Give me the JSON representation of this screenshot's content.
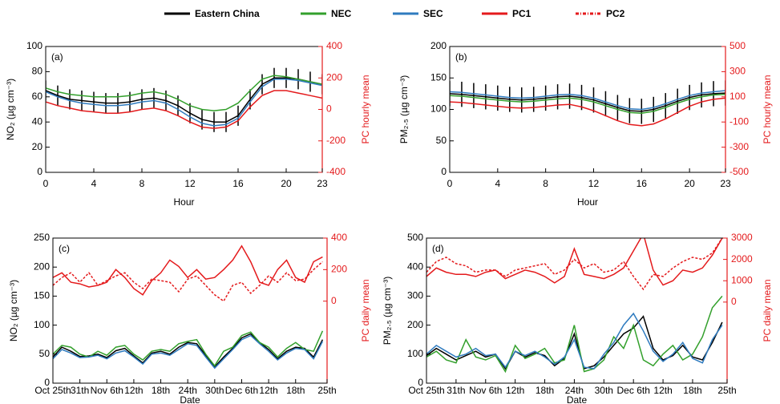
{
  "chart_data": [
    {
      "type": "line",
      "label": "(a)",
      "xlabel": "Hour",
      "ylabel": "NO₂ (µg cm⁻³)",
      "y2label": "PC hourly mean",
      "x": [
        0,
        1,
        2,
        3,
        4,
        5,
        6,
        7,
        8,
        9,
        10,
        11,
        12,
        13,
        14,
        15,
        16,
        17,
        18,
        19,
        20,
        21,
        22,
        23
      ],
      "xlim": [
        0,
        23
      ],
      "xticks": [
        0,
        4,
        8,
        12,
        16,
        20,
        23
      ],
      "ylim": [
        0,
        100
      ],
      "yticks": [
        0,
        20,
        40,
        60,
        80,
        100
      ],
      "y2lim": [
        -400,
        400
      ],
      "y2ticks": [
        -400,
        -200,
        0,
        200,
        400
      ],
      "series": [
        {
          "name": "Eastern China",
          "color": "#000000",
          "values": [
            65,
            61,
            58,
            57,
            56,
            55,
            55,
            56,
            58,
            59,
            57,
            53,
            47,
            42,
            40,
            40,
            45,
            58,
            70,
            75,
            75,
            74,
            72,
            70
          ],
          "errors": [
            8,
            8,
            8,
            8,
            8,
            8,
            8,
            8,
            8,
            8,
            8,
            8,
            8,
            8,
            8,
            8,
            8,
            8,
            8,
            8,
            8,
            8,
            8,
            8
          ]
        },
        {
          "name": "NEC",
          "color": "#33a02c",
          "values": [
            67,
            64,
            62,
            61,
            60,
            60,
            60,
            61,
            63,
            64,
            62,
            58,
            53,
            50,
            49,
            50,
            55,
            65,
            74,
            77,
            76,
            74,
            72,
            70
          ]
        },
        {
          "name": "SEC",
          "color": "#2f7bbf",
          "values": [
            64,
            60,
            57,
            55,
            54,
            53,
            53,
            54,
            56,
            57,
            55,
            50,
            44,
            39,
            37,
            38,
            43,
            56,
            68,
            74,
            74,
            73,
            71,
            69
          ]
        },
        {
          "name": "PC1",
          "color": "#e41a1c",
          "axis": "y2",
          "values": [
            48,
            24,
            8,
            -8,
            -16,
            -24,
            -24,
            -16,
            0,
            8,
            -8,
            -40,
            -80,
            -112,
            -120,
            -112,
            -72,
            16,
            88,
            120,
            120,
            104,
            88,
            72
          ]
        }
      ]
    },
    {
      "type": "line",
      "label": "(b)",
      "xlabel": "Hour",
      "ylabel": "PM₂.₅ (µg cm⁻³)",
      "y2label": "PC hourly mean",
      "x": [
        0,
        1,
        2,
        3,
        4,
        5,
        6,
        7,
        8,
        9,
        10,
        11,
        12,
        13,
        14,
        15,
        16,
        17,
        18,
        19,
        20,
        21,
        22,
        23
      ],
      "xlim": [
        0,
        23
      ],
      "xticks": [
        0,
        4,
        8,
        12,
        16,
        20,
        23
      ],
      "ylim": [
        0,
        200
      ],
      "yticks": [
        0,
        50,
        100,
        150,
        200
      ],
      "y2lim": [
        -500,
        500
      ],
      "y2ticks": [
        -500,
        -300,
        -100,
        100,
        300,
        500
      ],
      "series": [
        {
          "name": "Eastern China",
          "color": "#000000",
          "values": [
            125,
            124,
            122,
            120,
            118,
            116,
            115,
            116,
            118,
            120,
            121,
            119,
            115,
            109,
            103,
            98,
            97,
            100,
            106,
            113,
            119,
            123,
            125,
            126
          ],
          "errors": [
            20,
            20,
            20,
            20,
            20,
            20,
            20,
            20,
            20,
            20,
            20,
            20,
            20,
            20,
            20,
            20,
            20,
            20,
            20,
            20,
            20,
            20,
            20,
            20
          ]
        },
        {
          "name": "NEC",
          "color": "#33a02c",
          "values": [
            122,
            121,
            119,
            117,
            115,
            113,
            112,
            113,
            115,
            117,
            118,
            116,
            112,
            106,
            100,
            95,
            94,
            97,
            103,
            110,
            116,
            120,
            123,
            124
          ]
        },
        {
          "name": "SEC",
          "color": "#2f7bbf",
          "values": [
            128,
            127,
            125,
            123,
            121,
            119,
            118,
            119,
            121,
            123,
            124,
            122,
            118,
            112,
            106,
            101,
            100,
            103,
            109,
            116,
            122,
            126,
            128,
            130
          ]
        },
        {
          "name": "PC1",
          "color": "#e41a1c",
          "axis": "y2",
          "values": [
            60,
            55,
            45,
            35,
            25,
            15,
            10,
            15,
            25,
            35,
            40,
            20,
            -10,
            -50,
            -90,
            -120,
            -130,
            -115,
            -75,
            -25,
            25,
            60,
            80,
            90
          ]
        }
      ]
    },
    {
      "type": "line",
      "label": "(c)",
      "xlabel": "Date",
      "ylabel": "NO₂ (µg cm⁻³)",
      "y2label": "PC daily mean",
      "x": [
        0,
        2,
        4,
        6,
        8,
        10,
        12,
        14,
        16,
        18,
        20,
        22,
        24,
        26,
        28,
        30,
        32,
        34,
        36,
        38,
        40,
        42,
        44,
        46,
        48,
        50,
        52,
        54,
        56,
        58,
        60
      ],
      "xlim": [
        0,
        61
      ],
      "xticks": [
        {
          "value": 0,
          "label": "Oct 25th"
        },
        {
          "value": 6,
          "label": "31th"
        },
        {
          "value": 12,
          "label": "Nov 6th"
        },
        {
          "value": 18,
          "label": "12th"
        },
        {
          "value": 24,
          "label": "18th"
        },
        {
          "value": 30,
          "label": "24th"
        },
        {
          "value": 36,
          "label": "30th"
        },
        {
          "value": 42,
          "label": "Dec 6th"
        },
        {
          "value": 48,
          "label": "12th"
        },
        {
          "value": 54,
          "label": "18th"
        },
        {
          "value": 61,
          "label": "25th"
        }
      ],
      "ylim": [
        0,
        250
      ],
      "yticks": [
        0,
        50,
        100,
        150,
        200,
        250
      ],
      "y2lim": [
        -520,
        400
      ],
      "y2ticks": [
        0,
        200,
        400
      ],
      "series": [
        {
          "name": "Eastern China",
          "color": "#000000",
          "values": [
            45,
            62,
            55,
            46,
            47,
            50,
            44,
            56,
            60,
            47,
            35,
            52,
            55,
            50,
            62,
            70,
            68,
            48,
            28,
            45,
            60,
            78,
            85,
            70,
            58,
            42,
            55,
            62,
            60,
            45,
            75
          ]
        },
        {
          "name": "NEC",
          "color": "#33a02c",
          "values": [
            50,
            65,
            62,
            50,
            45,
            55,
            48,
            62,
            65,
            50,
            40,
            55,
            58,
            55,
            68,
            72,
            75,
            50,
            30,
            55,
            62,
            82,
            88,
            70,
            62,
            45,
            60,
            70,
            58,
            55,
            90
          ]
        },
        {
          "name": "SEC",
          "color": "#2f7bbf",
          "values": [
            42,
            58,
            52,
            44,
            45,
            48,
            42,
            52,
            56,
            45,
            33,
            50,
            52,
            48,
            58,
            68,
            65,
            45,
            26,
            42,
            58,
            75,
            82,
            68,
            55,
            40,
            52,
            60,
            58,
            42,
            72
          ]
        },
        {
          "name": "PC1",
          "color": "#e41a1c",
          "axis": "y2",
          "values": [
            150,
            180,
            120,
            110,
            90,
            100,
            120,
            200,
            150,
            80,
            40,
            130,
            180,
            260,
            220,
            150,
            200,
            140,
            150,
            200,
            260,
            350,
            250,
            120,
            100,
            200,
            260,
            150,
            120,
            250,
            280
          ]
        },
        {
          "name": "PC2",
          "color": "#e41a1c",
          "axis": "y2",
          "linestyle": "dashed",
          "values": [
            100,
            150,
            180,
            120,
            180,
            100,
            130,
            160,
            180,
            120,
            80,
            140,
            130,
            120,
            60,
            140,
            160,
            100,
            40,
            0,
            100,
            120,
            50,
            100,
            160,
            120,
            180,
            130,
            140,
            200,
            250
          ]
        }
      ]
    },
    {
      "type": "line",
      "label": "(d)",
      "xlabel": "Date",
      "ylabel": "PM₂.₅ (µg cm⁻³)",
      "y2label": "PC daily mean",
      "x": [
        0,
        2,
        4,
        6,
        8,
        10,
        12,
        14,
        16,
        18,
        20,
        22,
        24,
        26,
        28,
        30,
        32,
        34,
        36,
        38,
        40,
        42,
        44,
        46,
        48,
        50,
        52,
        54,
        56,
        58,
        60
      ],
      "xlim": [
        0,
        61
      ],
      "xticks": [
        {
          "value": 0,
          "label": "Oct 25th"
        },
        {
          "value": 6,
          "label": "31th"
        },
        {
          "value": 12,
          "label": "Nov 6th"
        },
        {
          "value": 18,
          "label": "12th"
        },
        {
          "value": 24,
          "label": "18th"
        },
        {
          "value": 30,
          "label": "24th"
        },
        {
          "value": 36,
          "label": "30th"
        },
        {
          "value": 42,
          "label": "Dec 6th"
        },
        {
          "value": 48,
          "label": "12th"
        },
        {
          "value": 54,
          "label": "18th"
        },
        {
          "value": 61,
          "label": "25th"
        }
      ],
      "ylim": [
        0,
        500
      ],
      "yticks": [
        0,
        100,
        200,
        300,
        400,
        500
      ],
      "y2lim": [
        -3800,
        3000
      ],
      "y2ticks": [
        0,
        1000,
        2000,
        3000
      ],
      "series": [
        {
          "name": "Eastern China",
          "color": "#000000",
          "values": [
            95,
            120,
            100,
            80,
            95,
            110,
            90,
            100,
            50,
            110,
            90,
            105,
            95,
            60,
            85,
            170,
            50,
            60,
            90,
            130,
            170,
            190,
            230,
            120,
            80,
            95,
            130,
            90,
            80,
            140,
            210
          ]
        },
        {
          "name": "NEC",
          "color": "#33a02c",
          "values": [
            90,
            110,
            80,
            70,
            150,
            90,
            80,
            95,
            40,
            130,
            85,
            100,
            120,
            70,
            80,
            200,
            40,
            50,
            80,
            160,
            120,
            200,
            80,
            60,
            100,
            130,
            80,
            100,
            160,
            260,
            300
          ]
        },
        {
          "name": "SEC",
          "color": "#2f7bbf",
          "values": [
            100,
            130,
            110,
            90,
            100,
            120,
            95,
            100,
            55,
            110,
            95,
            110,
            90,
            65,
            90,
            150,
            55,
            50,
            100,
            140,
            200,
            240,
            180,
            110,
            75,
            100,
            140,
            85,
            70,
            150,
            200
          ]
        },
        {
          "name": "PC1",
          "color": "#e41a1c",
          "axis": "y2",
          "values": [
            1200,
            1600,
            1400,
            1300,
            1300,
            1200,
            1400,
            1500,
            1100,
            1300,
            1500,
            1400,
            1200,
            900,
            1200,
            2500,
            1300,
            1200,
            1100,
            1300,
            1600,
            2400,
            3200,
            1500,
            800,
            1000,
            1500,
            1400,
            1600,
            2200,
            3000
          ]
        },
        {
          "name": "PC2",
          "color": "#e41a1c",
          "axis": "y2",
          "linestyle": "dashed",
          "values": [
            1400,
            1900,
            2100,
            1800,
            1700,
            1400,
            1500,
            1500,
            1200,
            1500,
            1600,
            1700,
            1800,
            1300,
            1500,
            2000,
            1600,
            1800,
            1400,
            1500,
            1900,
            1200,
            600,
            1300,
            1200,
            1600,
            1900,
            2100,
            2000,
            2300,
            3000
          ]
        }
      ]
    }
  ]
}
